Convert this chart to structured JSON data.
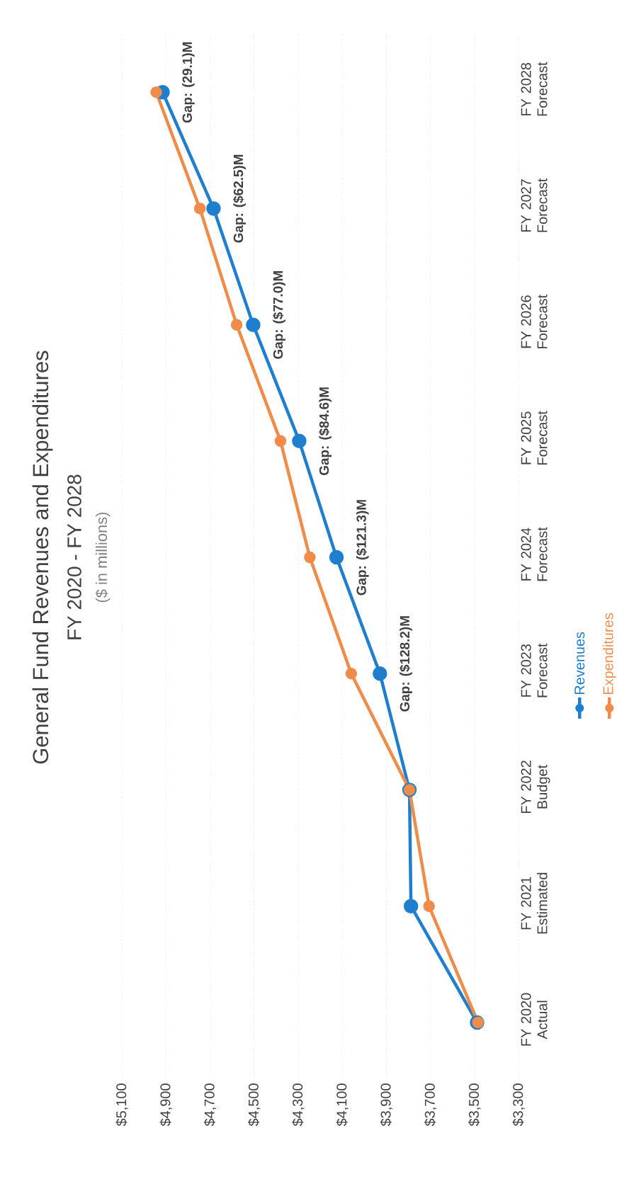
{
  "chart_data": {
    "type": "line",
    "orientation": "horizontal",
    "title": "General Fund Revenues and Expenditures",
    "subtitle": "FY 2020 - FY 2028",
    "annotations": [
      "($ in millions)",
      "Gap: (29.1)M",
      "Gap: ($62.5)M",
      "Gap: ($77.0)M",
      "Gap: ($84.6)M",
      "Gap: ($121.3)M",
      "Gap: ($128.2)M"
    ],
    "categories": [
      "FY 2028 Forecast",
      "FY 2027 Forecast",
      "FY 2026 Forecast",
      "FY 2025 Forecast",
      "FY 2024 Forecast",
      "FY 2023 Forecast",
      "FY 2022 Budget",
      "FY 2021 Estimated",
      "FY 2020 Actual"
    ],
    "series": [
      {
        "name": "Revenues",
        "color": "#1f7fce",
        "values": [
          4915,
          4684,
          4504,
          4295,
          4126,
          3929,
          3795,
          3788,
          3488
        ]
      },
      {
        "name": "Expenditures",
        "color": "#f08c4a",
        "values": [
          4944,
          4746,
          4579,
          4380,
          4247,
          4059,
          3795,
          3706,
          3484
        ]
      }
    ],
    "xlim": [
      5100,
      3300
    ],
    "xticks": [
      {
        "value": 5100,
        "label": "$5,100"
      },
      {
        "value": 4900,
        "label": "$4,900"
      },
      {
        "value": 4700,
        "label": "$4,700"
      },
      {
        "value": 4500,
        "label": "$4,500"
      },
      {
        "value": 4300,
        "label": "$4,300"
      },
      {
        "value": 4100,
        "label": "$4,100"
      },
      {
        "value": 3900,
        "label": "$3,900"
      },
      {
        "value": 3700,
        "label": "$3,700"
      },
      {
        "value": 3500,
        "label": "$3,500"
      },
      {
        "value": 3300,
        "label": "$3,300"
      }
    ],
    "grid": "x",
    "legend": "bottom right",
    "marker": "circle",
    "line_style": "solid"
  }
}
